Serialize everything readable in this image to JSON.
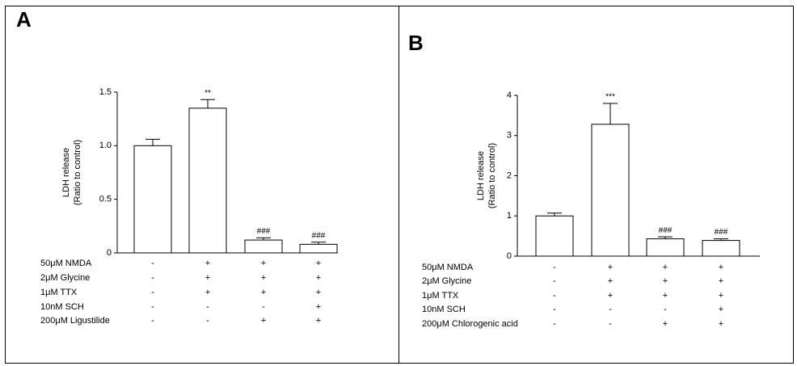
{
  "chart_data": [
    {
      "type": "bar",
      "title": "A",
      "y_label": [
        "LDH release",
        "(Ratio to control)"
      ],
      "values": [
        1.0,
        1.35,
        0.12,
        0.08
      ],
      "errors": [
        0.06,
        0.08,
        0.02,
        0.02
      ],
      "annotations": [
        null,
        "**",
        "###",
        "###"
      ],
      "color": "#ffffff",
      "ylim": [
        0,
        1.5
      ],
      "yticks": [
        0,
        0.5,
        {
          "value": 1,
          "label": "1.0"
        },
        1.5
      ],
      "conditions": [
        {
          "label": "50μM NMDA",
          "signs": [
            "-",
            "+",
            "+",
            "+"
          ]
        },
        {
          "label": "2μM Glycine",
          "signs": [
            "-",
            "+",
            "+",
            "+"
          ]
        },
        {
          "label": "1μM TTX",
          "signs": [
            "-",
            "+",
            "+",
            "+"
          ]
        },
        {
          "label": "10nM SCH",
          "signs": [
            "-",
            "-",
            "-",
            "+"
          ]
        },
        {
          "label": "200μM Ligustilide",
          "signs": [
            "-",
            "-",
            "+",
            "+"
          ]
        }
      ]
    },
    {
      "type": "bar",
      "title": "B",
      "y_label": [
        "LDH release",
        "(Ratio to control)"
      ],
      "values": [
        1.0,
        3.28,
        0.43,
        0.39
      ],
      "errors": [
        0.07,
        0.52,
        0.05,
        0.04
      ],
      "annotations": [
        null,
        "***",
        "###",
        "###"
      ],
      "color": "#ffffff",
      "ylim": [
        0,
        4
      ],
      "yticks": [
        0,
        1,
        2,
        3,
        4
      ],
      "conditions": [
        {
          "label": "50μM NMDA",
          "signs": [
            "-",
            "+",
            "+",
            "+"
          ]
        },
        {
          "label": "2μM Glycine",
          "signs": [
            "-",
            "+",
            "+",
            "+"
          ]
        },
        {
          "label": "1μM TTX",
          "signs": [
            "-",
            "+",
            "+",
            "+"
          ]
        },
        {
          "label": "10nM SCH",
          "signs": [
            "-",
            "-",
            "-",
            "+"
          ]
        },
        {
          "label": "200μM Chlorogenic acid",
          "signs": [
            "-",
            "-",
            "+",
            "+"
          ]
        }
      ]
    }
  ]
}
